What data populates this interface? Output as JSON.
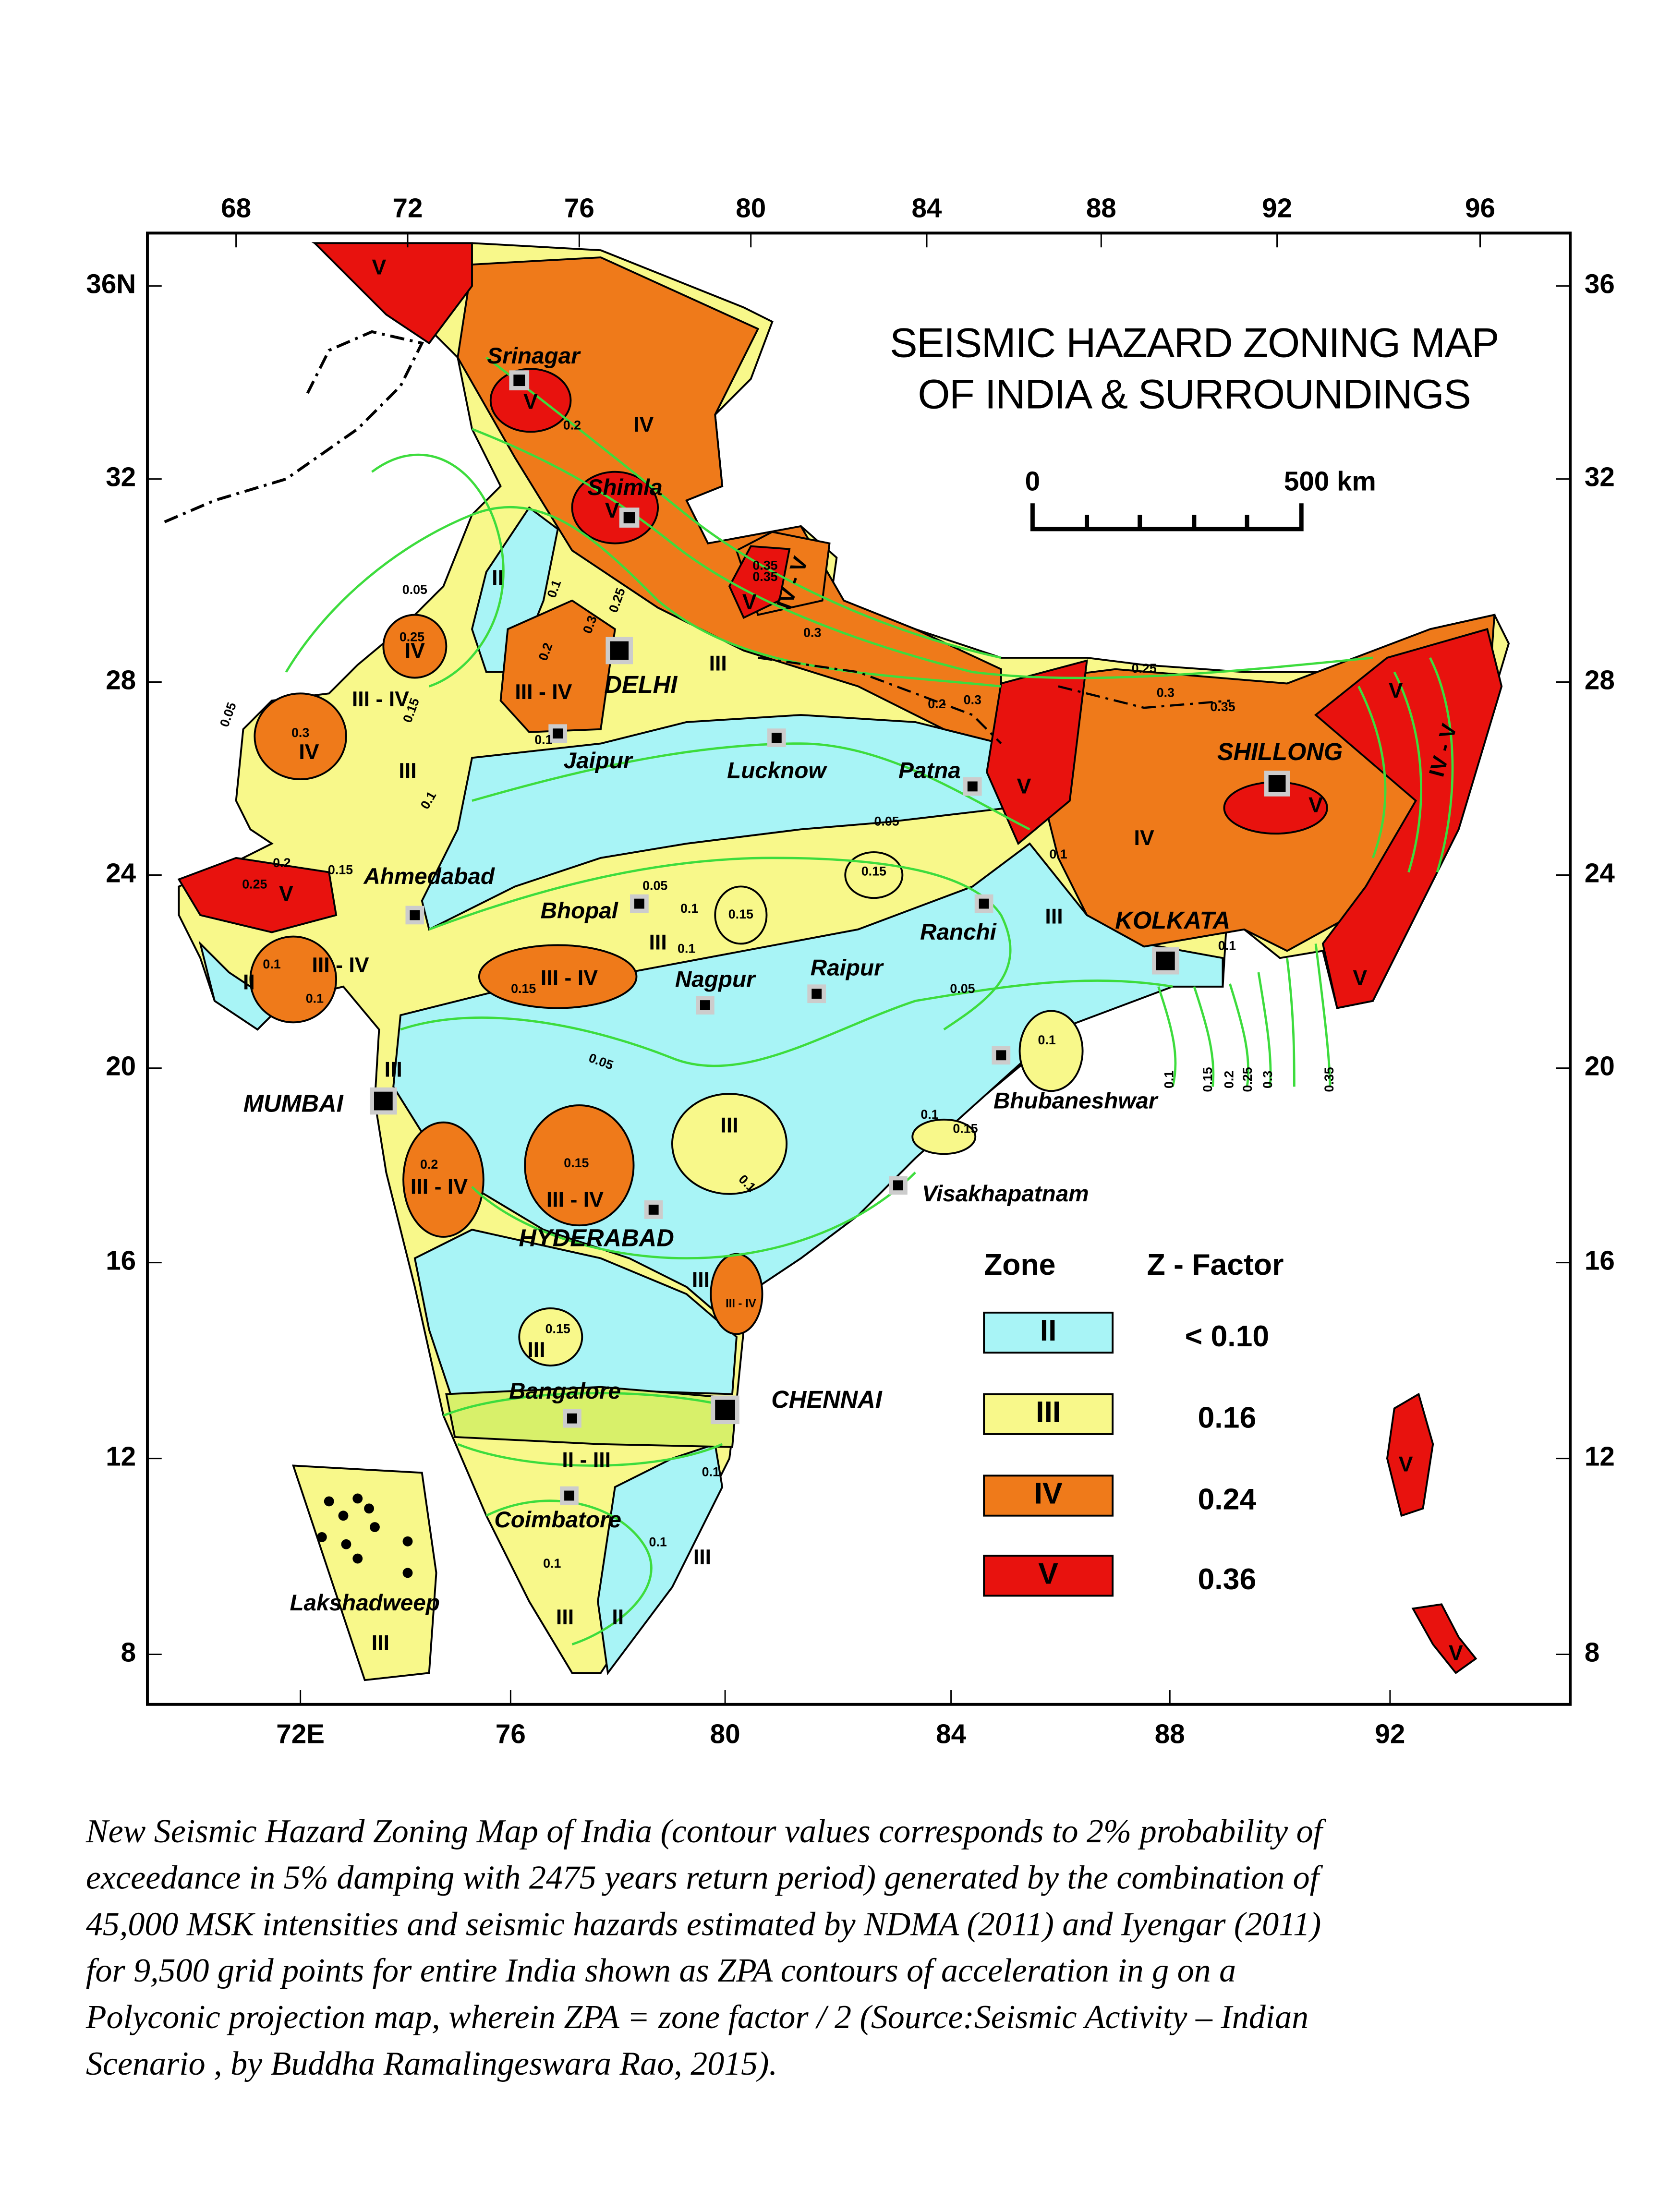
{
  "title": [
    "SEISMIC HAZARD ZONING MAP",
    "OF INDIA & SURROUNDINGS"
  ],
  "scale_bar": {
    "start": "0",
    "end": "500 km"
  },
  "axes": {
    "top": [
      "68",
      "72",
      "76",
      "80",
      "84",
      "88",
      "92",
      "96"
    ],
    "bottom": [
      "72E",
      "76",
      "80",
      "84",
      "88",
      "92"
    ],
    "left": [
      "36N",
      "32",
      "28",
      "24",
      "20",
      "16",
      "12",
      "8"
    ],
    "right": [
      "36",
      "32",
      "28",
      "24",
      "20",
      "16",
      "12",
      "8"
    ]
  },
  "cities": [
    {
      "label": "Srinagar"
    },
    {
      "label": "Shimla"
    },
    {
      "label": "DELHI"
    },
    {
      "label": "Jaipur"
    },
    {
      "label": "Lucknow"
    },
    {
      "label": "Patna"
    },
    {
      "label": "SHILLONG"
    },
    {
      "label": "Ahmedabad"
    },
    {
      "label": "Bhopal"
    },
    {
      "label": "Ranchi"
    },
    {
      "label": "KOLKATA"
    },
    {
      "label": "Nagpur"
    },
    {
      "label": "Raipur"
    },
    {
      "label": "MUMBAI"
    },
    {
      "label": "Bhubaneshwar"
    },
    {
      "label": "Visakhapatnam"
    },
    {
      "label": "HYDERABAD"
    },
    {
      "label": "Bangalore"
    },
    {
      "label": "CHENNAI"
    },
    {
      "label": "Coimbatore"
    },
    {
      "label": "Lakshadweep"
    }
  ],
  "zone_labels": [
    "V",
    "IV",
    "V",
    "V",
    "II",
    "III",
    "V",
    "IV - V",
    "IV",
    "III - IV",
    "III - IV",
    "IV",
    "III",
    "V",
    "II",
    "III - IV",
    "III - IV",
    "III",
    "III",
    "III",
    "III - IV",
    "III - IV",
    "III",
    "III",
    "III - IV",
    "III",
    "II - III",
    "III",
    "III",
    "II",
    "III",
    "V",
    "IV",
    "V",
    "IV - V",
    "V",
    "V",
    "V",
    "V"
  ],
  "contour_labels": [
    "0.2",
    "0.35",
    "0.3",
    "0.25",
    "0.3",
    "0.35",
    "0.2",
    "0.3",
    "0.05",
    "0.1",
    "0.25",
    "0.3",
    "0.2",
    "0.15",
    "0.1",
    "0.1",
    "0.05",
    "0.05",
    "0.1",
    "0.1",
    "0.05",
    "0.1",
    "0.1",
    "0.05",
    "0.1",
    "0.1",
    "0.2",
    "0.15",
    "0.1",
    "0.1",
    "0.15",
    "0.1",
    "0.15",
    "0.1",
    "0.1",
    "0.1",
    "0.3",
    "0.25",
    "0.2",
    "0.15",
    "0.25",
    "0.35",
    "0.15",
    "0.15",
    "0.15",
    "0.05",
    "0.1",
    "0.15",
    "0.2",
    "0.25",
    "0.3",
    "0.35"
  ],
  "legend": {
    "zone_header": "Zone",
    "factor_header": "Z - Factor",
    "items": [
      {
        "zone": "II",
        "factor": "< 0.10",
        "color": "#a8f4f6"
      },
      {
        "zone": "III",
        "factor": "0.16",
        "color": "#f8f88a"
      },
      {
        "zone": "IV",
        "factor": "0.24",
        "color": "#ef7a1a"
      },
      {
        "zone": "V",
        "factor": "0.36",
        "color": "#e8120e"
      }
    ]
  },
  "caption": [
    "New Seismic Hazard Zoning Map of India (contour values corresponds to 2% probability of",
    "exceedance in 5% damping with 2475 years return period) generated by the combination of",
    "45,000 MSK intensities and seismic hazards estimated by NDMA (2011) and Iyengar (2011)",
    "for 9,500 grid points for entire India shown as ZPA contours of acceleration in g on a",
    "Polyconic projection map, wherein ZPA = zone factor / 2 (Source:Seismic Activity – Indian",
    "Scenario , by Buddha Ramalingeswara Rao, 2015)."
  ]
}
